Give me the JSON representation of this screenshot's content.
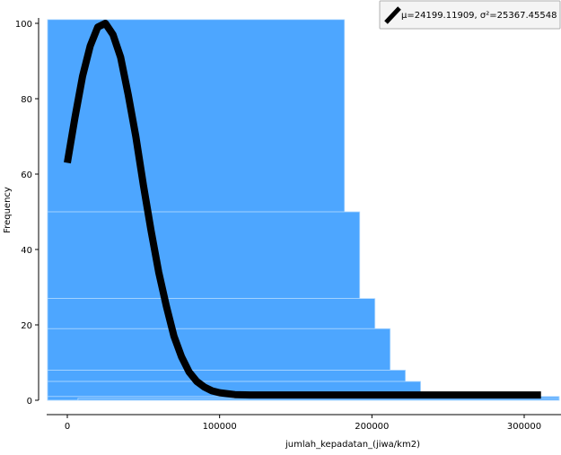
{
  "chart_data": {
    "type": "bar",
    "xlabel": "jumlah_kepadatan_(jiwa/km2)",
    "ylabel": "Frequency",
    "xlim": [
      -13000,
      323000
    ],
    "ylim": [
      -1,
      101
    ],
    "xticks": [
      0,
      100000,
      200000,
      300000
    ],
    "xtick_labels": [
      "0",
      "100000",
      "200000",
      "300000"
    ],
    "yticks": [
      0,
      20,
      40,
      60,
      80,
      100
    ],
    "ytick_labels": [
      "0",
      "20",
      "40",
      "60",
      "80",
      "100"
    ],
    "bar_color": "#4da6ff",
    "bar_stroke": "#b7dcff",
    "curve_color": "#000000",
    "bars": [
      {
        "x0": -13000,
        "x1": 182000,
        "y": 101
      },
      {
        "x0": -13000,
        "x1": 192000,
        "y": 50
      },
      {
        "x0": -13000,
        "x1": 202000,
        "y": 27
      },
      {
        "x0": -13000,
        "x1": 212000,
        "y": 19
      },
      {
        "x0": -13000,
        "x1": 222000,
        "y": 8
      },
      {
        "x0": -13000,
        "x1": 232000,
        "y": 5
      },
      {
        "x0": -13000,
        "x1": 323000,
        "y": 1
      },
      {
        "x0": 7000,
        "x1": 323000,
        "y": 0.5
      }
    ],
    "series": [
      {
        "name": "μ=24199.11909, σ²=25367.45548",
        "type": "line",
        "points": [
          [
            0,
            63
          ],
          [
            5000,
            75
          ],
          [
            10000,
            86
          ],
          [
            15000,
            94
          ],
          [
            20000,
            99
          ],
          [
            25000,
            100
          ],
          [
            30000,
            97
          ],
          [
            35000,
            91
          ],
          [
            40000,
            81
          ],
          [
            45000,
            70
          ],
          [
            50000,
            57
          ],
          [
            55000,
            45
          ],
          [
            60000,
            34
          ],
          [
            65000,
            25
          ],
          [
            70000,
            17
          ],
          [
            75000,
            11.5
          ],
          [
            80000,
            7.5
          ],
          [
            85000,
            5
          ],
          [
            90000,
            3.5
          ],
          [
            95000,
            2.5
          ],
          [
            100000,
            2
          ],
          [
            110000,
            1.5
          ],
          [
            120000,
            1.4
          ],
          [
            150000,
            1.4
          ],
          [
            200000,
            1.4
          ],
          [
            250000,
            1.4
          ],
          [
            311000,
            1.4
          ]
        ]
      }
    ],
    "legend": {
      "position": "top-right",
      "label": "μ=24199.11909, σ²=25367.45548"
    }
  }
}
